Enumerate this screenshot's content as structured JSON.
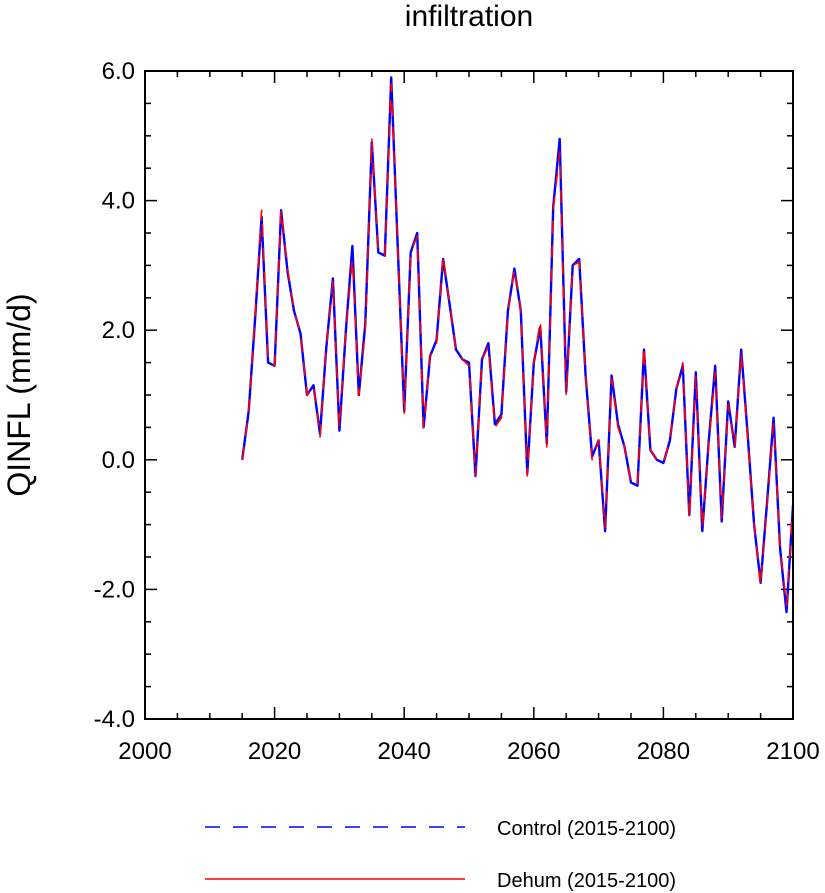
{
  "chart_data": {
    "type": "line",
    "title": "infiltration",
    "xlabel": "",
    "ylabel": "QINFL  (mm/d)",
    "xlim": [
      2000,
      2100
    ],
    "ylim": [
      -4.0,
      6.0
    ],
    "x_ticks": [
      2000,
      2020,
      2040,
      2060,
      2080,
      2100
    ],
    "y_ticks": [
      -4.0,
      -2.0,
      0.0,
      2.0,
      4.0,
      6.0
    ],
    "x_tick_labels": [
      "2000",
      "2020",
      "2040",
      "2060",
      "2080",
      "2100"
    ],
    "y_tick_labels": [
      "-4.0",
      "-2.0",
      "0.0",
      "2.0",
      "4.0",
      "6.0"
    ],
    "grid": false,
    "legend_position": "bottom",
    "x": [
      2015,
      2016,
      2017,
      2018,
      2019,
      2020,
      2021,
      2022,
      2023,
      2024,
      2025,
      2026,
      2027,
      2028,
      2029,
      2030,
      2031,
      2032,
      2033,
      2034,
      2035,
      2036,
      2037,
      2038,
      2039,
      2040,
      2041,
      2042,
      2043,
      2044,
      2045,
      2046,
      2047,
      2048,
      2049,
      2050,
      2051,
      2052,
      2053,
      2054,
      2055,
      2056,
      2057,
      2058,
      2059,
      2060,
      2061,
      2062,
      2063,
      2064,
      2065,
      2066,
      2067,
      2068,
      2069,
      2070,
      2071,
      2072,
      2073,
      2074,
      2075,
      2076,
      2077,
      2078,
      2079,
      2080,
      2081,
      2082,
      2083,
      2084,
      2085,
      2086,
      2087,
      2088,
      2089,
      2090,
      2091,
      2092,
      2093,
      2094,
      2095,
      2096,
      2097,
      2098,
      2099,
      2100
    ],
    "series": [
      {
        "name": "Control (2015-2100)",
        "color": "#0000ff",
        "style": "dashed",
        "values": [
          0.0,
          0.75,
          2.2,
          3.75,
          1.5,
          1.45,
          3.85,
          2.9,
          2.3,
          1.95,
          1.0,
          1.15,
          0.4,
          1.75,
          2.8,
          0.45,
          2.0,
          3.3,
          1.0,
          2.1,
          4.9,
          3.2,
          3.15,
          5.9,
          3.3,
          0.75,
          3.2,
          3.5,
          0.5,
          1.6,
          1.85,
          3.1,
          2.4,
          1.7,
          1.55,
          1.5,
          -0.25,
          1.55,
          1.8,
          0.55,
          0.7,
          2.3,
          2.95,
          2.3,
          -0.2,
          1.5,
          2.05,
          0.25,
          3.9,
          4.95,
          1.05,
          3.0,
          3.1,
          1.3,
          0.05,
          0.3,
          -1.1,
          1.3,
          0.55,
          0.2,
          -0.35,
          -0.4,
          1.7,
          0.15,
          0.0,
          -0.05,
          0.3,
          1.1,
          1.45,
          -0.85,
          1.35,
          -1.1,
          0.3,
          1.45,
          -0.95,
          0.9,
          0.2,
          1.7,
          0.4,
          -1.0,
          -1.9,
          -0.65,
          0.65,
          -1.35,
          -2.35,
          -0.7
        ]
      },
      {
        "name": "Dehum (2015-2100)",
        "color": "#ff0000",
        "style": "solid",
        "values": [
          0.0,
          0.75,
          2.25,
          3.85,
          1.5,
          1.45,
          3.85,
          2.95,
          2.3,
          1.95,
          1.0,
          1.15,
          0.35,
          1.75,
          2.75,
          0.5,
          2.0,
          3.1,
          1.0,
          2.0,
          4.95,
          3.2,
          3.15,
          5.8,
          3.3,
          0.7,
          3.2,
          3.45,
          0.5,
          1.6,
          1.8,
          3.15,
          2.4,
          1.7,
          1.55,
          1.45,
          -0.25,
          1.55,
          1.75,
          0.5,
          0.65,
          2.3,
          2.95,
          2.3,
          -0.25,
          1.5,
          2.15,
          0.2,
          3.85,
          4.75,
          1.0,
          3.0,
          3.05,
          1.3,
          0.0,
          0.3,
          -1.05,
          1.25,
          0.5,
          0.2,
          -0.35,
          -0.4,
          1.75,
          0.15,
          0.0,
          -0.05,
          0.3,
          1.1,
          1.5,
          -0.9,
          1.3,
          -1.05,
          0.25,
          1.35,
          -0.9,
          0.85,
          0.2,
          1.65,
          0.35,
          -1.0,
          -1.95,
          -0.7,
          0.55,
          -1.35,
          -2.25,
          -0.7
        ]
      }
    ]
  }
}
